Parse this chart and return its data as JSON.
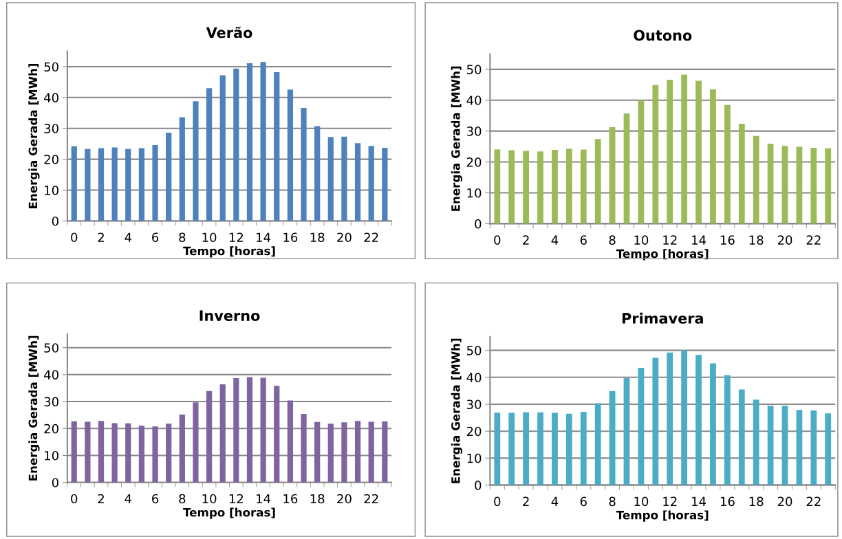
{
  "chart_data": [
    {
      "type": "bar",
      "title": "Verão",
      "xlabel": "Tempo [horas]",
      "ylabel": "Energia Gerada [MWh]",
      "categories": [
        "0",
        null,
        "2",
        null,
        "4",
        null,
        "6",
        null,
        "8",
        null,
        "10",
        null,
        "12",
        null,
        "14",
        null,
        "16",
        null,
        "18",
        null,
        "20",
        null,
        "22",
        null
      ],
      "color": "#4f81bd",
      "values": [
        24.2,
        23.3,
        23.6,
        23.8,
        23.3,
        23.6,
        24.6,
        28.6,
        33.6,
        38.8,
        43.0,
        47.2,
        49.4,
        51.1,
        51.5,
        48.2,
        42.6,
        36.6,
        30.7,
        27.2,
        27.3,
        25.2,
        24.3,
        23.7
      ],
      "ylim": [
        0,
        55
      ],
      "yticks": [
        0,
        10,
        20,
        30,
        40,
        50
      ],
      "grid": "y",
      "legend": false
    },
    {
      "type": "bar",
      "title": "Outono",
      "xlabel": "Tempo [horas]",
      "ylabel": "Energia Gerada [MWh]",
      "categories": [
        "0",
        null,
        "2",
        null,
        "4",
        null,
        "6",
        null,
        "8",
        null,
        "10",
        null,
        "12",
        null,
        "14",
        null,
        "16",
        null,
        "18",
        null,
        "20",
        null,
        "22",
        null
      ],
      "color": "#9bbb59",
      "values": [
        24.1,
        23.8,
        23.6,
        23.4,
        23.9,
        24.3,
        24.0,
        27.4,
        31.3,
        35.7,
        40.0,
        44.9,
        46.6,
        48.3,
        46.3,
        43.5,
        38.5,
        32.4,
        28.4,
        25.9,
        25.2,
        24.9,
        24.6,
        24.4
      ],
      "ylim": [
        0,
        55
      ],
      "yticks": [
        0,
        10,
        20,
        30,
        40,
        50
      ],
      "grid": "y",
      "legend": false
    },
    {
      "type": "bar",
      "title": "Inverno",
      "xlabel": "Tempo [horas]",
      "ylabel": "Energia Gerada [MWh]",
      "categories": [
        "0",
        null,
        "2",
        null,
        "4",
        null,
        "6",
        null,
        "8",
        null,
        "10",
        null,
        "12",
        null,
        "14",
        null,
        "16",
        null,
        "18",
        null,
        "20",
        null,
        "22",
        null
      ],
      "color": "#8064a2",
      "values": [
        22.7,
        22.5,
        22.8,
        22.0,
        21.9,
        21.0,
        20.8,
        21.8,
        25.2,
        29.7,
        33.9,
        36.4,
        38.7,
        39.1,
        38.8,
        35.8,
        30.4,
        25.4,
        22.4,
        21.8,
        22.3,
        22.8,
        22.5,
        22.6
      ],
      "ylim": [
        0,
        55
      ],
      "yticks": [
        0,
        10,
        20,
        30,
        40,
        50
      ],
      "grid": "y",
      "legend": false
    },
    {
      "type": "bar",
      "title": "Primavera",
      "xlabel": "Tempo [horas]",
      "ylabel": "Energia Gerada [MWh]",
      "categories": [
        "0",
        null,
        "2",
        null,
        "4",
        null,
        "6",
        null,
        "8",
        null,
        "10",
        null,
        "12",
        null,
        "14",
        null,
        "16",
        null,
        "18",
        null,
        "20",
        null,
        "22",
        null
      ],
      "color": "#4bacc6",
      "values": [
        26.9,
        26.8,
        27.0,
        27.0,
        26.8,
        26.5,
        27.2,
        30.4,
        34.9,
        39.7,
        43.5,
        47.2,
        49.2,
        50.0,
        48.3,
        45.2,
        40.8,
        35.5,
        31.7,
        29.4,
        29.4,
        27.9,
        27.7,
        26.6
      ],
      "ylim": [
        0,
        55
      ],
      "yticks": [
        0,
        10,
        20,
        30,
        40,
        50
      ],
      "grid": "y",
      "legend": false
    }
  ]
}
